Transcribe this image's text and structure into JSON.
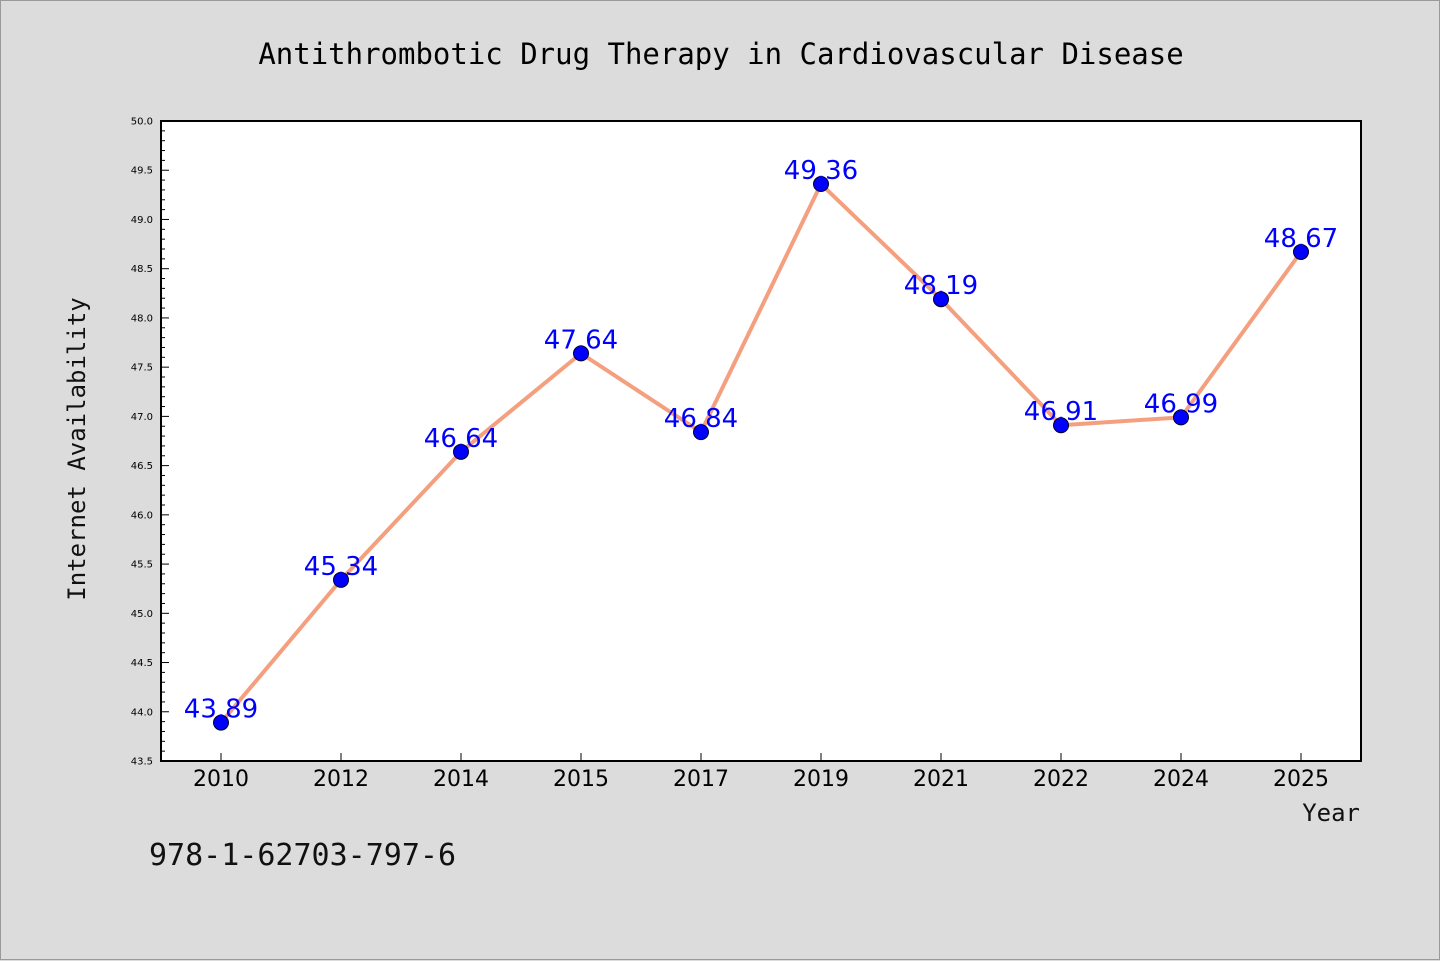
{
  "chart_data": {
    "type": "line",
    "title": "Antithrombotic Drug Therapy in Cardiovascular Disease",
    "xlabel": "Year",
    "ylabel": "Internet Availability",
    "categories": [
      "2010",
      "2012",
      "2014",
      "2015",
      "2017",
      "2019",
      "2021",
      "2022",
      "2024",
      "2025"
    ],
    "values": [
      43.89,
      45.34,
      46.64,
      47.64,
      46.84,
      49.36,
      48.19,
      46.91,
      46.99,
      48.67
    ],
    "data_labels": [
      "43.89",
      "45.34",
      "46.64",
      "47.64",
      "46.84",
      "49.36",
      "48.19",
      "46.91",
      "46.99",
      "48.67"
    ],
    "ylim": [
      43.5,
      50.0
    ],
    "yticks": [
      "43.5",
      "44.0",
      "44.5",
      "45.0",
      "45.5",
      "46.0",
      "46.5",
      "47.0",
      "47.5",
      "48.0",
      "48.5",
      "49.0",
      "49.5",
      "50.0"
    ],
    "grid": false,
    "line_color": "#f4a07f",
    "marker_color": "#0000ff",
    "label_color": "#0000ff",
    "plot_background": "#ffffff",
    "figure_background": "#dcdcdc"
  },
  "footer": {
    "isbn": "978-1-62703-797-6"
  }
}
